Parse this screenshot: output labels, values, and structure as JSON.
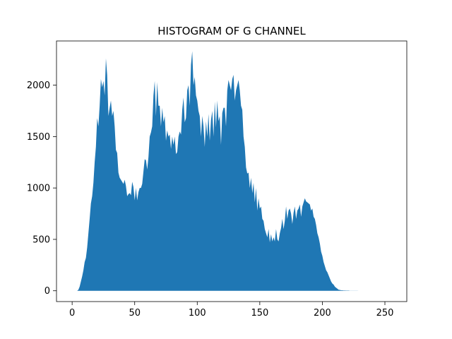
{
  "chart_data": {
    "type": "area",
    "title": "HISTOGRAM OF G CHANNEL",
    "xlabel": "",
    "ylabel": "",
    "xlim": [
      -12.5,
      267.5
    ],
    "ylim": [
      -105,
      2430
    ],
    "xticks": [
      0,
      50,
      100,
      150,
      200,
      250
    ],
    "yticks": [
      0,
      500,
      1000,
      1500,
      2000
    ],
    "fill_color": "#1f77b4",
    "grid": false,
    "x_start": 0,
    "x_step": 1,
    "values": [
      0,
      0,
      0,
      0,
      0,
      10,
      40,
      90,
      140,
      200,
      280,
      320,
      420,
      560,
      700,
      850,
      920,
      1050,
      1250,
      1400,
      1680,
      1600,
      1800,
      2060,
      1980,
      2040,
      1900,
      2260,
      2100,
      1700,
      1780,
      1850,
      1700,
      1750,
      1600,
      1370,
      1340,
      1150,
      1100,
      1080,
      1060,
      1040,
      1080,
      1020,
      920,
      940,
      950,
      930,
      1060,
      1010,
      880,
      1000,
      880,
      960,
      1000,
      1000,
      1040,
      1160,
      1280,
      1270,
      1180,
      1300,
      1500,
      1540,
      1600,
      1900,
      2040,
      1700,
      2030,
      1800,
      1800,
      1600,
      1780,
      1640,
      1700,
      1460,
      1560,
      1500,
      1520,
      1380,
      1500,
      1420,
      1500,
      1330,
      1350,
      1500,
      1550,
      1520,
      1760,
      1880,
      1640,
      1680,
      1950,
      2000,
      1800,
      2200,
      2330,
      2000,
      2080,
      1900,
      1850,
      1750,
      1700,
      1500,
      1700,
      1600,
      1400,
      1650,
      1500,
      1720,
      1460,
      1660,
      1750,
      1500,
      1840,
      1590,
      1850,
      1650,
      1700,
      1420,
      1730,
      1780,
      1780,
      1600,
      1950,
      2050,
      2000,
      1950,
      2060,
      2100,
      1850,
      1950,
      2000,
      2050,
      1950,
      1800,
      1760,
      1500,
      1400,
      1200,
      1140,
      1150,
      1000,
      1100,
      950,
      1050,
      860,
      1000,
      780,
      900,
      800,
      820,
      700,
      680,
      600,
      560,
      520,
      600,
      470,
      550,
      480,
      520,
      480,
      600,
      500,
      480,
      560,
      610,
      700,
      600,
      680,
      820,
      700,
      780,
      800,
      750,
      650,
      760,
      820,
      700,
      780,
      800,
      840,
      720,
      820,
      860,
      900,
      870,
      860,
      850,
      840,
      780,
      800,
      720,
      700,
      640,
      560,
      520,
      460,
      380,
      340,
      280,
      240,
      200,
      180,
      150,
      120,
      90,
      70,
      60,
      40,
      30,
      20,
      10,
      8,
      5,
      5,
      3,
      3,
      2,
      2,
      2,
      1,
      1,
      1,
      1,
      1,
      1,
      1,
      0,
      0,
      0,
      0,
      0,
      0,
      0,
      0,
      0,
      0,
      0,
      0,
      0,
      0,
      0,
      0,
      0,
      0,
      0,
      0
    ]
  }
}
